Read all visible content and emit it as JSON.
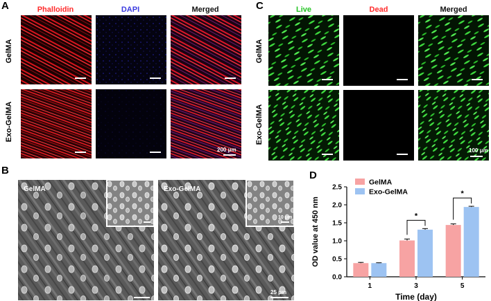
{
  "panels": {
    "A": {
      "label": "A",
      "columns": [
        "Phalloidin",
        "DAPI",
        "Merged"
      ],
      "column_colors": [
        "#ff2a2a",
        "#3a3adf",
        "#111111"
      ],
      "rows": [
        "GelMA",
        "Exo-GelMA"
      ],
      "scale_label": "200 μm"
    },
    "B": {
      "label": "B",
      "images": [
        "GelMA",
        "Exo-GelMA"
      ],
      "inset_scale_label": "10 μm",
      "scale_label": "25 μm"
    },
    "C": {
      "label": "C",
      "columns": [
        "Live",
        "Dead",
        "Merged"
      ],
      "column_colors": [
        "#22c322",
        "#ff2a2a",
        "#111111"
      ],
      "rows": [
        "GelMA",
        "Exo-GelMA"
      ],
      "scale_label": "100 μm"
    },
    "D": {
      "label": "D"
    }
  },
  "chart_data": {
    "type": "bar",
    "categories": [
      "1",
      "3",
      "5"
    ],
    "series": [
      {
        "name": "GelMA",
        "color": "#f7a3a3",
        "values": [
          0.38,
          1.01,
          1.44
        ],
        "errors": [
          0.02,
          0.04,
          0.03
        ]
      },
      {
        "name": "Exo-GelMA",
        "color": "#9dc3f2",
        "values": [
          0.38,
          1.31,
          1.94
        ],
        "errors": [
          0.01,
          0.03,
          0.02
        ]
      }
    ],
    "xlabel": "Time (day)",
    "ylabel": "OD value at 450 nm",
    "ylim": [
      0,
      2.5
    ],
    "yticks": [
      "0.0",
      "0.5",
      "1.0",
      "1.5",
      "2.0",
      "2.5"
    ],
    "significance": [
      {
        "category": "3",
        "label": "*"
      },
      {
        "category": "5",
        "label": "*"
      }
    ],
    "legend_position": "top-left",
    "grid": false
  }
}
